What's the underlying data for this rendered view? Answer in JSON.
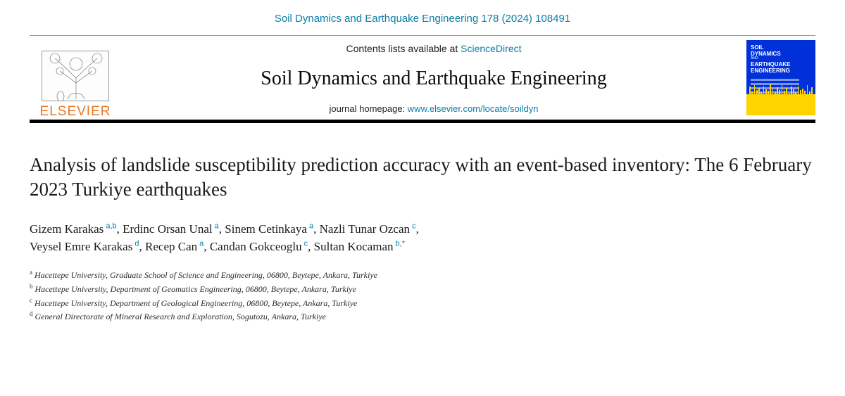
{
  "citation": "Soil Dynamics and Earthquake Engineering 178 (2024) 108491",
  "header": {
    "contents_prefix": "Contents lists available at ",
    "contents_link_text": "ScienceDirect",
    "journal_name": "Soil Dynamics and Earthquake Engineering",
    "homepage_prefix": "journal homepage: ",
    "homepage_url": "www.elsevier.com/locate/soildyn",
    "publisher_logo_text": "ELSEVIER",
    "cover": {
      "line1": "SOIL",
      "line2": "DYNAMICS",
      "and": "AND",
      "line3": "EARTHQUAKE",
      "line4": "ENGINEERING",
      "bg_color": "#0030d8",
      "accent_color": "#ffd400"
    }
  },
  "article": {
    "title": "Analysis of landslide susceptibility prediction accuracy with an event-based inventory: The 6 February 2023 Turkiye earthquakes"
  },
  "authors": [
    {
      "name": "Gizem Karakas",
      "marks": "a,b"
    },
    {
      "name": "Erdinc Orsan Unal",
      "marks": "a"
    },
    {
      "name": "Sinem Cetinkaya",
      "marks": "a"
    },
    {
      "name": "Nazli Tunar Ozcan",
      "marks": "c"
    },
    {
      "name": "Veysel Emre Karakas",
      "marks": "d"
    },
    {
      "name": "Recep Can",
      "marks": "a"
    },
    {
      "name": "Candan Gokceoglu",
      "marks": "c"
    },
    {
      "name": "Sultan Kocaman",
      "marks": "b,*"
    }
  ],
  "affiliations": [
    {
      "key": "a",
      "text": "Hacettepe University, Graduate School of Science and Engineering, 06800, Beytepe, Ankara, Turkiye"
    },
    {
      "key": "b",
      "text": "Hacettepe University, Department of Geomatics Engineering, 06800, Beytepe, Ankara, Turkiye"
    },
    {
      "key": "c",
      "text": "Hacettepe University, Department of Geological Engineering, 06800, Beytepe, Ankara, Turkiye"
    },
    {
      "key": "d",
      "text": "General Directorate of Mineral Research and Exploration, Sogutozu, Ankara, Turkiye"
    }
  ],
  "colors": {
    "link": "#0b7da8",
    "elsevier_orange": "#e97826",
    "text": "#1a1a1a",
    "rule": "#000000"
  },
  "cover_spike_heights": [
    11,
    4,
    13,
    6,
    9,
    3,
    12,
    7,
    5,
    14,
    8,
    4,
    10,
    6,
    13,
    5,
    9,
    3,
    11,
    7,
    4,
    12,
    6,
    8,
    5,
    13,
    4,
    10
  ]
}
